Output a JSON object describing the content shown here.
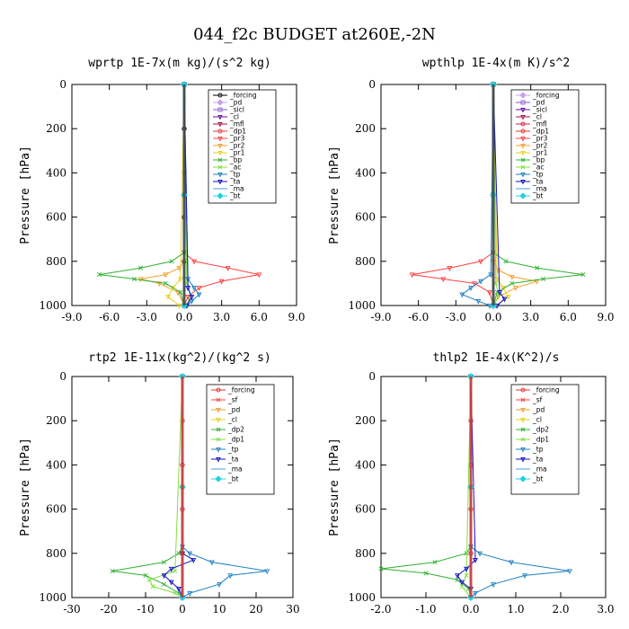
{
  "figure": {
    "title": "044_f2c  BUDGET at260E,-2N"
  },
  "chart_data": [
    {
      "type": "line",
      "title": "wprtp  1E-7x(m kg)/(s^2 kg)",
      "xlabel": "",
      "ylabel": "Pressure [hPa]",
      "xlim": [
        -9,
        9
      ],
      "ylim": [
        1000,
        0
      ],
      "x_ticks": [
        "-9.0",
        "-6.0",
        "-3.0",
        "0.0",
        "3.0",
        "6.0",
        "9.0"
      ],
      "x_tick_values": [
        -9,
        -6,
        -3,
        0,
        3,
        6,
        9
      ],
      "y_ticks": [
        "0",
        "200",
        "400",
        "600",
        "800",
        "1000"
      ],
      "y_tick_values": [
        0,
        200,
        400,
        600,
        800,
        1000
      ],
      "legend_position": "top-right",
      "series": [
        {
          "name": "_forcing",
          "color": "#000000",
          "marker": "circle",
          "pressure": [
            0,
            200,
            400,
            600,
            800,
            1000
          ],
          "values": [
            0,
            0,
            0,
            0,
            0,
            0
          ]
        },
        {
          "name": "_pd",
          "color": "#c8a0e6",
          "marker": "diamond",
          "pressure": [
            0,
            500,
            1000
          ],
          "values": [
            0,
            0,
            0
          ]
        },
        {
          "name": "_sicl",
          "color": "#8a5ad0",
          "marker": "square",
          "pressure": [
            0,
            500,
            1000
          ],
          "values": [
            0,
            0,
            0
          ]
        },
        {
          "name": "_cl",
          "color": "#6a0da0",
          "marker": "triangle",
          "pressure": [
            0,
            500,
            1000
          ],
          "values": [
            0,
            0,
            0
          ]
        },
        {
          "name": "_mfl",
          "color": "#b0104a",
          "marker": "triangle",
          "pressure": [
            0,
            500,
            1000
          ],
          "values": [
            0,
            0,
            0
          ]
        },
        {
          "name": "_dp1",
          "color": "#e83030",
          "marker": "circle",
          "pressure": [
            0,
            500,
            1000
          ],
          "values": [
            0,
            0,
            0
          ]
        },
        {
          "name": "_pr3",
          "color": "#ff4040",
          "marker": "triangle",
          "pressure": [
            0,
            760,
            800,
            830,
            860,
            890,
            920,
            960,
            1000
          ],
          "values": [
            0,
            0,
            0.8,
            3.5,
            6.0,
            3.0,
            1.2,
            0.3,
            0
          ]
        },
        {
          "name": "_pr2",
          "color": "#f0a030",
          "marker": "triangle",
          "pressure": [
            0,
            800,
            830,
            860,
            880,
            900,
            940,
            1000
          ],
          "values": [
            0,
            0,
            -0.4,
            -1.5,
            -3.5,
            -2.0,
            -0.5,
            0
          ]
        },
        {
          "name": "_pr1",
          "color": "#e8d020",
          "marker": "triangle",
          "pressure": [
            0,
            880,
            920,
            960,
            1000
          ],
          "values": [
            0,
            -0.3,
            -0.9,
            -1.3,
            -0.4
          ]
        },
        {
          "name": "_bp",
          "color": "#30b030",
          "marker": "cross",
          "pressure": [
            0,
            760,
            800,
            830,
            860,
            880,
            900,
            940,
            1000
          ],
          "values": [
            0,
            0,
            -1.0,
            -3.5,
            -6.8,
            -4.0,
            -1.5,
            -0.3,
            0
          ]
        },
        {
          "name": "_ac",
          "color": "#80e040",
          "marker": "cross",
          "pressure": [
            0,
            900,
            950,
            1000
          ],
          "values": [
            0,
            0.2,
            0.5,
            0.2
          ]
        },
        {
          "name": "_tp",
          "color": "#2080c0",
          "marker": "triangle",
          "pressure": [
            0,
            880,
            920,
            950,
            980,
            1000
          ],
          "values": [
            0,
            0.3,
            0.8,
            1.2,
            0.6,
            0.2
          ]
        },
        {
          "name": "_ta",
          "color": "#1010c0",
          "marker": "triangle",
          "pressure": [
            0,
            920,
            960,
            1000
          ],
          "values": [
            0,
            0.3,
            0.6,
            0.2
          ]
        },
        {
          "name": "_ma",
          "color": "#40a0e0",
          "marker": "none",
          "pressure": [
            0,
            500,
            1000
          ],
          "values": [
            0,
            0,
            0
          ]
        },
        {
          "name": "_bt",
          "color": "#20d0e0",
          "marker": "diamond",
          "pressure": [
            0,
            500,
            1000
          ],
          "values": [
            0,
            0,
            0
          ]
        }
      ]
    },
    {
      "type": "line",
      "title": "wpthlp  1E-4x(m K)/s^2",
      "xlabel": "",
      "ylabel": "Pressure [hPa]",
      "xlim": [
        -9,
        9
      ],
      "ylim": [
        1000,
        0
      ],
      "x_ticks": [
        "-9.0",
        "-6.0",
        "-3.0",
        "0.0",
        "3.0",
        "6.0",
        "9.0"
      ],
      "x_tick_values": [
        -9,
        -6,
        -3,
        0,
        3,
        6,
        9
      ],
      "y_ticks": [
        "0",
        "200",
        "400",
        "600",
        "800",
        "1000"
      ],
      "y_tick_values": [
        0,
        200,
        400,
        600,
        800,
        1000
      ],
      "legend_position": "top-right",
      "series": [
        {
          "name": "_forcing",
          "color": "#c8a0e6",
          "marker": "diamond",
          "pressure": [
            0,
            500,
            1000
          ],
          "values": [
            0,
            0,
            0
          ]
        },
        {
          "name": "_pd",
          "color": "#8a5ad0",
          "marker": "square",
          "pressure": [
            0,
            500,
            1000
          ],
          "values": [
            0,
            0,
            0
          ]
        },
        {
          "name": "_sicl",
          "color": "#6a0da0",
          "marker": "triangle",
          "pressure": [
            0,
            500,
            1000
          ],
          "values": [
            0,
            0,
            0
          ]
        },
        {
          "name": "_cl",
          "color": "#b0104a",
          "marker": "triangle",
          "pressure": [
            0,
            500,
            1000
          ],
          "values": [
            0,
            0,
            0
          ]
        },
        {
          "name": "_mfl",
          "color": "#d02040",
          "marker": "circle",
          "pressure": [
            0,
            500,
            1000
          ],
          "values": [
            0,
            0,
            0
          ]
        },
        {
          "name": "_dp1",
          "color": "#e83030",
          "marker": "circle",
          "pressure": [
            0,
            500,
            1000
          ],
          "values": [
            0,
            0,
            0
          ]
        },
        {
          "name": "_pr3",
          "color": "#ff4040",
          "marker": "triangle",
          "pressure": [
            0,
            760,
            800,
            830,
            860,
            880,
            900,
            940,
            1000
          ],
          "values": [
            0,
            0,
            -1.0,
            -3.5,
            -6.5,
            -4.0,
            -1.5,
            -0.3,
            0
          ]
        },
        {
          "name": "_pr2",
          "color": "#f0a030",
          "marker": "triangle",
          "pressure": [
            0,
            800,
            840,
            870,
            890,
            920,
            960,
            1000
          ],
          "values": [
            0,
            0,
            0.4,
            1.5,
            3.5,
            1.8,
            0.4,
            0
          ]
        },
        {
          "name": "_pr1",
          "color": "#e8d020",
          "marker": "triangle",
          "pressure": [
            0,
            880,
            920,
            960,
            1000
          ],
          "values": [
            0,
            0.3,
            0.8,
            1.2,
            0.3
          ]
        },
        {
          "name": "_bp",
          "color": "#30b030",
          "marker": "cross",
          "pressure": [
            0,
            760,
            800,
            830,
            860,
            880,
            900,
            940,
            1000
          ],
          "values": [
            0,
            0,
            1.0,
            3.5,
            7.2,
            4.0,
            1.5,
            0.3,
            0
          ]
        },
        {
          "name": "_ac",
          "color": "#80e040",
          "marker": "cross",
          "pressure": [
            0,
            900,
            950,
            1000
          ],
          "values": [
            0,
            0.2,
            0.4,
            0.1
          ]
        },
        {
          "name": "_tp",
          "color": "#2080c0",
          "marker": "triangle",
          "pressure": [
            0,
            860,
            890,
            920,
            950,
            980,
            1000
          ],
          "values": [
            0,
            -0.2,
            -1.0,
            -1.8,
            -2.5,
            -1.2,
            -0.3
          ]
        },
        {
          "name": "_ta",
          "color": "#1010c0",
          "marker": "triangle",
          "pressure": [
            0,
            940,
            970,
            1000
          ],
          "values": [
            0,
            0.5,
            0.9,
            0.3
          ]
        },
        {
          "name": "_ma",
          "color": "#40a0e0",
          "marker": "none",
          "pressure": [
            0,
            500,
            1000
          ],
          "values": [
            0,
            0,
            0
          ]
        },
        {
          "name": "_bt",
          "color": "#20d0e0",
          "marker": "diamond",
          "pressure": [
            0,
            500,
            1000
          ],
          "values": [
            0,
            0,
            0
          ]
        }
      ]
    },
    {
      "type": "line",
      "title": "rtp2  1E-11x(kg^2)/(kg^2 s)",
      "xlabel": "",
      "ylabel": "Pressure [hPa]",
      "xlim": [
        -30,
        30
      ],
      "ylim": [
        1000,
        0
      ],
      "x_ticks": [
        "-30",
        "-20",
        "-10",
        "0",
        "10",
        "20",
        "30"
      ],
      "x_tick_values": [
        -30,
        -20,
        -10,
        0,
        10,
        20,
        30
      ],
      "y_ticks": [
        "0",
        "200",
        "400",
        "600",
        "800",
        "1000"
      ],
      "y_tick_values": [
        0,
        200,
        400,
        600,
        800,
        1000
      ],
      "legend_position": "top-right",
      "series": [
        {
          "name": "_forcing",
          "color": "#e83030",
          "marker": "circle",
          "pressure": [
            0,
            200,
            400,
            600,
            800,
            1000
          ],
          "values": [
            0,
            0,
            0,
            0,
            0,
            0
          ]
        },
        {
          "name": "_sf",
          "color": "#ff4040",
          "marker": "cross",
          "pressure": [
            0,
            500,
            1000
          ],
          "values": [
            0,
            0,
            0
          ]
        },
        {
          "name": "_pd",
          "color": "#f0a030",
          "marker": "triangle",
          "pressure": [
            0,
            500,
            1000
          ],
          "values": [
            0,
            0,
            0
          ]
        },
        {
          "name": "_cl",
          "color": "#e8d020",
          "marker": "triangle",
          "pressure": [
            0,
            500,
            1000
          ],
          "values": [
            0,
            0,
            0
          ]
        },
        {
          "name": "_dp2",
          "color": "#30b030",
          "marker": "cross",
          "pressure": [
            0,
            770,
            800,
            840,
            880,
            900,
            940,
            980,
            1000
          ],
          "values": [
            0,
            0,
            -1.0,
            -5.0,
            -19.0,
            -10.0,
            -5.0,
            -1.0,
            0
          ]
        },
        {
          "name": "_dp1",
          "color": "#80e040",
          "marker": "cross",
          "pressure": [
            0,
            880,
            920,
            950,
            980,
            1000
          ],
          "values": [
            0,
            -2.0,
            -9.0,
            -8.0,
            -2.0,
            0
          ]
        },
        {
          "name": "_tp",
          "color": "#2080c0",
          "marker": "triangle",
          "pressure": [
            0,
            770,
            800,
            840,
            880,
            900,
            940,
            980,
            1000
          ],
          "values": [
            0,
            0,
            2.0,
            8.0,
            23.0,
            13.0,
            10.0,
            2.0,
            0
          ]
        },
        {
          "name": "_ta",
          "color": "#1010c0",
          "marker": "triangle",
          "pressure": [
            0,
            800,
            830,
            870,
            900,
            930,
            960,
            1000
          ],
          "values": [
            0,
            0,
            3.0,
            -3.0,
            -5.0,
            -3.0,
            -1.0,
            0
          ]
        },
        {
          "name": "_ma",
          "color": "#40a0e0",
          "marker": "none",
          "pressure": [
            0,
            500,
            1000
          ],
          "values": [
            0,
            0,
            0
          ]
        },
        {
          "name": "_bt",
          "color": "#20d0e0",
          "marker": "diamond",
          "pressure": [
            0,
            500,
            1000
          ],
          "values": [
            0,
            0,
            0
          ]
        }
      ]
    },
    {
      "type": "line",
      "title": "thlp2  1E-4x(K^2)/s",
      "xlabel": "",
      "ylabel": "Pressure [hPa]",
      "xlim": [
        -2,
        3
      ],
      "ylim": [
        1000,
        0
      ],
      "x_ticks": [
        "-2.0",
        "-1.0",
        "0.0",
        "1.0",
        "2.0",
        "3.0"
      ],
      "x_tick_values": [
        -2,
        -1,
        0,
        1,
        2,
        3
      ],
      "y_ticks": [
        "0",
        "200",
        "400",
        "600",
        "800",
        "1000"
      ],
      "y_tick_values": [
        0,
        200,
        400,
        600,
        800,
        1000
      ],
      "legend_position": "top-right",
      "series": [
        {
          "name": "_forcing",
          "color": "#e83030",
          "marker": "circle",
          "pressure": [
            0,
            200,
            400,
            600,
            800,
            1000
          ],
          "values": [
            0,
            0,
            0,
            0,
            0,
            0
          ]
        },
        {
          "name": "_sf",
          "color": "#ff4040",
          "marker": "cross",
          "pressure": [
            0,
            500,
            1000
          ],
          "values": [
            0,
            0,
            0
          ]
        },
        {
          "name": "_pd",
          "color": "#f0a030",
          "marker": "triangle",
          "pressure": [
            0,
            500,
            1000
          ],
          "values": [
            0,
            0,
            0
          ]
        },
        {
          "name": "_cl",
          "color": "#e8d020",
          "marker": "triangle",
          "pressure": [
            0,
            500,
            1000
          ],
          "values": [
            0,
            0,
            0
          ]
        },
        {
          "name": "_dp2",
          "color": "#30b030",
          "marker": "cross",
          "pressure": [
            0,
            770,
            800,
            840,
            870,
            890,
            920,
            960,
            1000
          ],
          "values": [
            0,
            0,
            -0.1,
            -0.8,
            -2.0,
            -1.0,
            -0.3,
            -0.05,
            0
          ]
        },
        {
          "name": "_dp1",
          "color": "#80e040",
          "marker": "cross",
          "pressure": [
            0,
            900,
            950,
            1000
          ],
          "values": [
            0,
            -0.1,
            -0.2,
            0
          ]
        },
        {
          "name": "_tp",
          "color": "#2080c0",
          "marker": "triangle",
          "pressure": [
            0,
            770,
            800,
            840,
            880,
            900,
            940,
            980,
            1000
          ],
          "values": [
            0,
            0,
            0.2,
            0.9,
            2.2,
            1.2,
            0.5,
            0.1,
            0
          ]
        },
        {
          "name": "_ta",
          "color": "#1010c0",
          "marker": "triangle",
          "pressure": [
            0,
            830,
            870,
            900,
            930,
            960,
            1000
          ],
          "values": [
            0,
            0.1,
            -0.1,
            -0.3,
            -0.2,
            0,
            0
          ]
        },
        {
          "name": "_ma",
          "color": "#40a0e0",
          "marker": "none",
          "pressure": [
            0,
            500,
            1000
          ],
          "values": [
            0,
            0,
            0
          ]
        },
        {
          "name": "_bt",
          "color": "#20d0e0",
          "marker": "diamond",
          "pressure": [
            0,
            500,
            1000
          ],
          "values": [
            0,
            0,
            0
          ]
        }
      ]
    }
  ]
}
